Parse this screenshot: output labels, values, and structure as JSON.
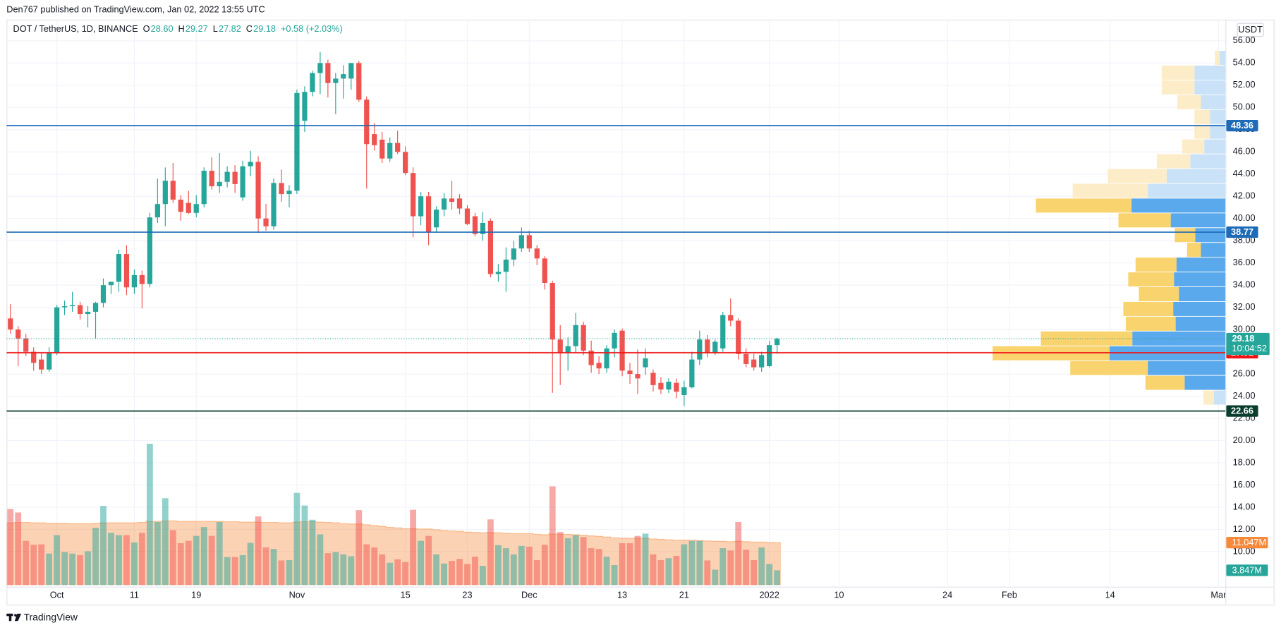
{
  "header": {
    "published": "Den767 published on TradingView.com, Jan 02, 2022 13:55 UTC",
    "logo": "TradingView",
    "currency": "USDT"
  },
  "chart_data": {
    "type": "candlestick",
    "symbol": "DOT / TetherUS, 1D, BINANCE",
    "ohlc_legend": [
      {
        "key": "O",
        "value": "28.60"
      },
      {
        "key": "H",
        "value": "29.27"
      },
      {
        "key": "L",
        "value": "27.82"
      },
      {
        "key": "C",
        "value": "29.18"
      }
    ],
    "change": "+0.58 (+2.03%)",
    "open": [
      31.0,
      30.0,
      29.2,
      28.0,
      27.3,
      26.4,
      27.9,
      32.0,
      32.1,
      32.2,
      31.4,
      31.6,
      32.4,
      34.0,
      34.3,
      36.8,
      33.8,
      34.9,
      34.1,
      40.1,
      41.3,
      43.4,
      41.7,
      41.4,
      40.5,
      41.3,
      44.3,
      42.9,
      43.3,
      44.2,
      41.9,
      44.7,
      45.1,
      40.0,
      39.3,
      43.2,
      42.2,
      42.5,
      48.8,
      51.4,
      53.1,
      54.0,
      52.2,
      52.6,
      52.6,
      54.0,
      50.7,
      47.6,
      47.1,
      45.4,
      46.8,
      46.0,
      44.1,
      40.2,
      42.0,
      39.2,
      40.8,
      41.8,
      41.8,
      40.9,
      40.2,
      38.6,
      39.8,
      35.0,
      35.2,
      36.3,
      37.3,
      38.5,
      37.3,
      36.4,
      34.2,
      29.1,
      27.9,
      28.5,
      30.4,
      28.1,
      27.0,
      26.5,
      28.3,
      29.9,
      26.3,
      26.0,
      26.6,
      26.1,
      25.2,
      24.6,
      25.2,
      24.1,
      24.8,
      27.3,
      29.1,
      27.9,
      28.3,
      31.3,
      30.8,
      27.8,
      27.3,
      26.6,
      26.7,
      28.6
    ],
    "high": [
      32.3,
      30.3,
      29.6,
      28.4,
      27.9,
      28.4,
      32.2,
      32.6,
      33.4,
      32.5,
      32.1,
      32.5,
      34.6,
      34.3,
      37.2,
      37.6,
      35.4,
      35.3,
      40.5,
      43.6,
      44.6,
      45.0,
      42.1,
      42.5,
      42.1,
      44.6,
      45.5,
      45.9,
      44.7,
      44.8,
      45.2,
      46.1,
      45.6,
      41.3,
      43.6,
      44.4,
      43.0,
      51.6,
      51.9,
      53.3,
      55.0,
      54.3,
      53.1,
      53.8,
      54.0,
      54.2,
      51.0,
      48.6,
      47.8,
      47.3,
      47.9,
      46.5,
      44.6,
      42.4,
      42.4,
      41.1,
      42.3,
      43.4,
      42.2,
      41.2,
      40.5,
      40.6,
      40.0,
      35.9,
      37.4,
      38.0,
      39.2,
      38.9,
      37.6,
      36.6,
      34.4,
      30.4,
      29.3,
      31.5,
      30.7,
      29.0,
      27.6,
      28.6,
      30.0,
      30.1,
      27.0,
      28.2,
      28.3,
      26.4,
      25.7,
      25.6,
      25.6,
      25.4,
      28.0,
      29.9,
      29.5,
      29.1,
      31.6,
      32.8,
      31.0,
      28.3,
      27.8,
      28.0,
      29.0,
      29.27
    ],
    "low": [
      29.6,
      26.7,
      27.6,
      26.3,
      26.0,
      26.2,
      27.7,
      31.3,
      31.6,
      30.9,
      30.2,
      29.2,
      32.0,
      33.2,
      33.4,
      33.1,
      33.2,
      31.9,
      33.8,
      39.6,
      39.3,
      41.4,
      39.8,
      40.4,
      40.1,
      41.0,
      42.6,
      42.3,
      42.8,
      42.3,
      41.6,
      43.8,
      38.7,
      38.9,
      39.0,
      41.5,
      41.0,
      42.2,
      47.8,
      51.0,
      51.2,
      50.9,
      49.4,
      50.8,
      51.6,
      50.5,
      42.7,
      46.1,
      45.0,
      45.1,
      45.8,
      43.9,
      38.3,
      39.4,
      37.6,
      38.7,
      40.2,
      40.8,
      40.4,
      39.4,
      38.4,
      38.0,
      34.7,
      34.3,
      33.4,
      35.7,
      37.0,
      37.0,
      35.8,
      33.6,
      24.3,
      25.0,
      26.3,
      27.9,
      27.7,
      26.1,
      26.0,
      26.1,
      27.5,
      25.8,
      25.1,
      24.2,
      25.9,
      24.4,
      24.2,
      24.3,
      23.8,
      23.1,
      24.7,
      26.8,
      27.5,
      27.7,
      28.0,
      30.3,
      27.3,
      26.6,
      26.3,
      26.2,
      26.6,
      27.82
    ],
    "close": [
      30.0,
      29.2,
      28.0,
      27.0,
      26.4,
      27.9,
      32.0,
      32.1,
      32.2,
      31.4,
      31.6,
      32.4,
      34.0,
      34.3,
      36.8,
      33.8,
      34.9,
      34.1,
      40.1,
      41.3,
      43.4,
      41.7,
      40.6,
      40.5,
      41.3,
      44.3,
      42.9,
      43.3,
      44.2,
      43.1,
      44.7,
      45.1,
      40.0,
      39.3,
      43.2,
      42.2,
      42.5,
      51.3,
      51.4,
      53.1,
      54.0,
      52.2,
      52.6,
      53.0,
      54.0,
      50.7,
      46.7,
      46.6,
      45.4,
      46.8,
      46.0,
      44.1,
      40.2,
      42.0,
      38.8,
      40.8,
      41.8,
      41.5,
      40.9,
      39.5,
      38.6,
      39.6,
      35.0,
      35.2,
      36.3,
      37.3,
      38.5,
      37.3,
      36.4,
      34.2,
      29.1,
      27.9,
      28.5,
      30.4,
      28.1,
      26.8,
      26.5,
      28.3,
      29.7,
      26.3,
      26.0,
      25.6,
      27.4,
      25.0,
      24.6,
      25.3,
      24.4,
      24.8,
      27.3,
      29.1,
      27.9,
      28.9,
      31.3,
      30.8,
      27.8,
      26.9,
      26.6,
      27.7,
      28.6,
      29.18
    ],
    "up_color": "#26a69a",
    "down_color": "#ef5350",
    "xlim": [
      -0.5,
      156.9
    ],
    "xticks": [
      {
        "value": 6,
        "label": "Oct"
      },
      {
        "value": 16,
        "label": "11"
      },
      {
        "value": 24,
        "label": "19"
      },
      {
        "value": 37,
        "label": "Nov"
      },
      {
        "value": 51,
        "label": "15"
      },
      {
        "value": 59,
        "label": "23"
      },
      {
        "value": 67,
        "label": "Dec"
      },
      {
        "value": 79,
        "label": "13"
      },
      {
        "value": 87,
        "label": "21"
      },
      {
        "value": 98,
        "label": "2022"
      },
      {
        "value": 107,
        "label": "10"
      },
      {
        "value": 121,
        "label": "24"
      },
      {
        "value": 129,
        "label": "Feb"
      },
      {
        "value": 142,
        "label": "14"
      },
      {
        "value": 156,
        "label": "Mar"
      }
    ],
    "ylim": [
      6.99,
      57.91
    ],
    "yticks": [
      {
        "value": 56,
        "label": "56.00"
      },
      {
        "value": 54,
        "label": "54.00"
      },
      {
        "value": 52,
        "label": "52.00"
      },
      {
        "value": 50,
        "label": "50.00"
      },
      {
        "value": 48,
        "label": "48.00"
      },
      {
        "value": 46,
        "label": "46.00"
      },
      {
        "value": 44,
        "label": "44.00"
      },
      {
        "value": 42,
        "label": "42.00"
      },
      {
        "value": 40,
        "label": "40.00"
      },
      {
        "value": 38,
        "label": "38.00"
      },
      {
        "value": 36,
        "label": "36.00"
      },
      {
        "value": 34,
        "label": "34.00"
      },
      {
        "value": 32,
        "label": "32.00"
      },
      {
        "value": 30,
        "label": "30.00"
      },
      {
        "value": 28,
        "label": "28.00"
      },
      {
        "value": 26,
        "label": "26.00"
      },
      {
        "value": 24,
        "label": "24.00"
      },
      {
        "value": 22,
        "label": "22.00"
      },
      {
        "value": 20,
        "label": "20.00"
      },
      {
        "value": 18,
        "label": "18.00"
      },
      {
        "value": 16,
        "label": "16.00"
      },
      {
        "value": 14,
        "label": "14.00"
      },
      {
        "value": 12,
        "label": "12.00"
      },
      {
        "value": 10,
        "label": "10.00"
      }
    ],
    "grid": true,
    "price_lines": [
      {
        "value": 48.36,
        "color": "#1e6bb8"
      },
      {
        "value": 38.77,
        "color": "#1e6bb8"
      },
      {
        "value": 27.91,
        "color": "#f01414"
      },
      {
        "value": 22.66,
        "color": "#0b3d2e"
      }
    ],
    "countdown": "10:04:52",
    "volume": [
      19.8,
      18.9,
      11.5,
      10.5,
      10.6,
      8.2,
      13.0,
      8.6,
      8.2,
      7.8,
      8.8,
      14.9,
      20.6,
      13.6,
      13.0,
      13.0,
      11.1,
      13.6,
      36.8,
      16.4,
      22.6,
      14.3,
      10.9,
      11.5,
      12.8,
      15.1,
      12.8,
      16.4,
      7.3,
      7.3,
      7.8,
      11.0,
      17.9,
      9.8,
      9.4,
      6.4,
      6.5,
      24.0,
      20.7,
      17.0,
      13.2,
      8.3,
      8.6,
      8.0,
      7.5,
      19.5,
      10.6,
      9.8,
      8.0,
      5.8,
      6.7,
      6.0,
      19.6,
      11.5,
      12.8,
      8.0,
      5.6,
      6.3,
      6.8,
      5.5,
      7.4,
      5.0,
      17.1,
      10.4,
      9.6,
      8.0,
      10.2,
      10.0,
      6.5,
      10.5,
      25.7,
      13.8,
      12.2,
      13.0,
      12.5,
      9.6,
      9.4,
      7.4,
      5.2,
      10.9,
      10.9,
      12.8,
      13.4,
      8.0,
      6.5,
      7.0,
      7.6,
      10.6,
      11.5,
      11.5,
      6.4,
      4.0,
      9.6,
      9.0,
      16.4,
      9.2,
      6.5,
      9.8,
      5.5,
      3.847
    ],
    "volume_ma": [
      16.2,
      16.3,
      16.3,
      16.2,
      16.2,
      16.1,
      16.1,
      16.1,
      16.0,
      16.0,
      16.0,
      16.1,
      16.2,
      16.2,
      16.2,
      16.2,
      16.2,
      16.3,
      16.6,
      16.6,
      16.7,
      16.7,
      16.6,
      16.6,
      16.6,
      16.6,
      16.6,
      16.6,
      16.5,
      16.5,
      16.4,
      16.4,
      16.4,
      16.3,
      16.3,
      16.2,
      16.2,
      16.4,
      16.5,
      16.5,
      16.4,
      16.3,
      16.2,
      16.0,
      15.9,
      15.9,
      15.7,
      15.5,
      15.3,
      15.0,
      14.9,
      14.7,
      14.7,
      14.6,
      14.6,
      14.4,
      14.2,
      14.1,
      14.0,
      13.8,
      13.7,
      13.6,
      13.7,
      13.6,
      13.5,
      13.4,
      13.4,
      13.4,
      13.2,
      13.1,
      13.3,
      13.2,
      13.2,
      13.1,
      13.0,
      12.8,
      12.7,
      12.5,
      12.3,
      12.2,
      12.2,
      12.2,
      12.2,
      12.0,
      11.9,
      11.8,
      11.7,
      11.7,
      11.7,
      11.6,
      11.5,
      11.4,
      11.4,
      11.3,
      11.4,
      11.3,
      11.2,
      11.2,
      11.1,
      11.047
    ],
    "volume_label": "3.847M",
    "volume_ma_label": "11.047M",
    "volume_ma_color": "#f7893b",
    "volume_profile": {
      "levels": [
        55.1,
        53.77,
        52.44,
        51.11,
        49.78,
        48.45,
        47.12,
        45.79,
        44.46,
        43.13,
        41.8,
        40.47,
        39.14,
        37.81,
        36.48,
        35.15,
        33.82,
        32.49,
        31.16,
        29.83,
        28.5,
        27.17,
        25.84,
        24.51,
        23.18
      ],
      "up": [
        7,
        38,
        38,
        30,
        19,
        19,
        26,
        43,
        72,
        95,
        115,
        67,
        37,
        30,
        60,
        63,
        57,
        64,
        61,
        114,
        142,
        95,
        50,
        14
      ],
      "down": [
        6,
        40,
        40,
        29,
        19,
        19,
        27,
        41,
        72,
        92,
        117,
        64,
        25,
        17,
        50,
        56,
        49,
        61,
        61,
        112,
        143,
        95,
        48,
        13
      ],
      "value_area": [
        false,
        false,
        false,
        false,
        false,
        false,
        false,
        false,
        false,
        false,
        true,
        true,
        true,
        true,
        true,
        true,
        true,
        true,
        true,
        true,
        true,
        true,
        true,
        false
      ],
      "up_color": "#5aa9ec",
      "down_color": "#f9d36e",
      "up_pale": "#c9e2f7",
      "down_pale": "#fdecc8"
    }
  }
}
